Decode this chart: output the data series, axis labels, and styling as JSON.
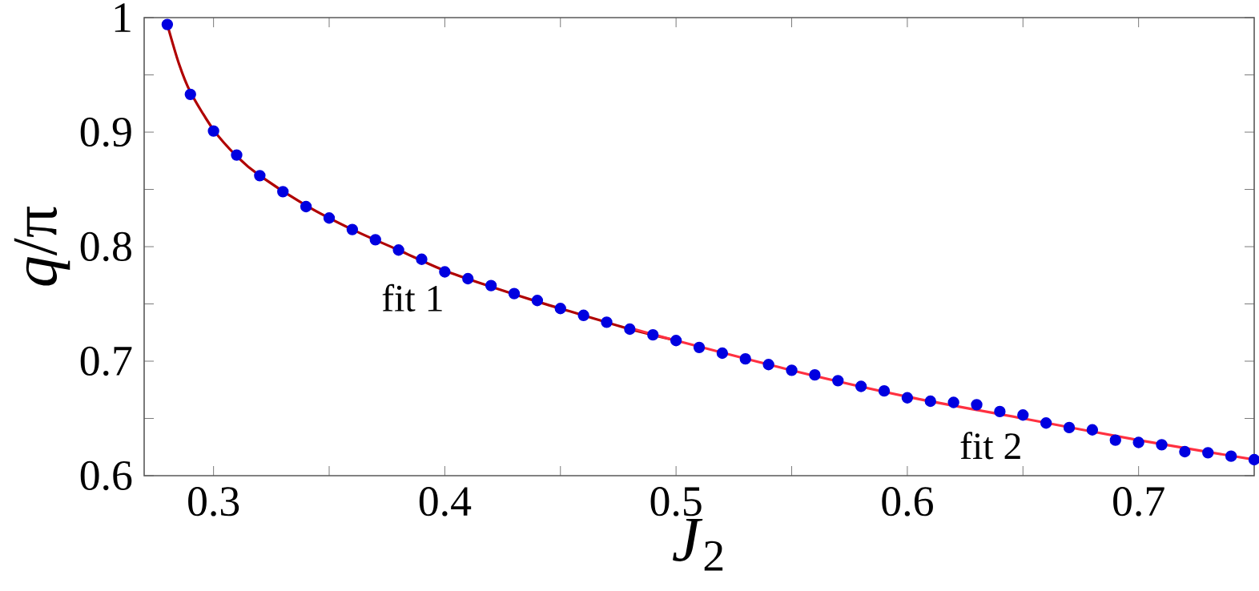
{
  "chart_data": {
    "type": "scatter",
    "xlabel": "*J*$_{2}$",
    "ylabel": "*q*/π",
    "xlim": [
      0.27,
      0.75
    ],
    "ylim": [
      0.6,
      1
    ],
    "xticks": [
      0.3,
      {
        "value": 0.35,
        "label": null
      },
      0.4,
      {
        "value": 0.45,
        "label": null
      },
      0.5,
      {
        "value": 0.55,
        "label": null
      },
      0.6,
      {
        "value": 0.65,
        "label": null
      },
      0.7
    ],
    "yticks": [
      0.6,
      {
        "value": 0.65,
        "label": null
      },
      0.7,
      {
        "value": 0.75,
        "label": null
      },
      0.8,
      {
        "value": 0.85,
        "label": null
      },
      0.9,
      {
        "value": 0.95,
        "label": null
      },
      1
    ],
    "grid": false,
    "annotations": [
      "fit 1",
      "fit 2"
    ],
    "series": [
      {
        "type": "line",
        "color": "#b00000",
        "line_style": "solid",
        "x": [
          0.28,
          0.285,
          0.29,
          0.3,
          0.31,
          0.32,
          0.34,
          0.36,
          0.38,
          0.4,
          0.42,
          0.44,
          0.46,
          0.48,
          0.5
        ],
        "values": [
          0.994,
          0.96,
          0.935,
          0.902,
          0.879,
          0.862,
          0.836,
          0.815,
          0.797,
          0.779,
          0.765,
          0.752,
          0.74,
          0.728,
          0.718
        ]
      },
      {
        "type": "line",
        "color": "#ff3040",
        "line_style": "solid",
        "x": [
          0.48,
          0.5,
          0.55,
          0.6,
          0.65,
          0.7,
          0.75
        ],
        "values": [
          0.729,
          0.718,
          0.692,
          0.669,
          0.65,
          0.631,
          0.614
        ]
      },
      {
        "color": "#0000e0",
        "x": [
          0.28,
          0.29,
          0.3,
          0.31,
          0.32,
          0.33,
          0.34,
          0.35,
          0.36,
          0.37,
          0.38,
          0.39,
          0.4,
          0.41,
          0.42,
          0.43,
          0.44,
          0.45,
          0.46,
          0.47,
          0.48,
          0.49,
          0.5,
          0.51,
          0.52,
          0.53,
          0.54,
          0.55,
          0.56,
          0.57,
          0.58,
          0.59,
          0.6,
          0.61,
          0.62,
          0.63,
          0.64,
          0.65,
          0.66,
          0.67,
          0.68,
          0.69,
          0.7,
          0.71,
          0.72,
          0.73,
          0.74,
          0.75
        ],
        "values": [
          0.994,
          0.933,
          0.901,
          0.88,
          0.862,
          0.848,
          0.835,
          0.825,
          0.815,
          0.806,
          0.797,
          0.789,
          0.778,
          0.772,
          0.766,
          0.759,
          0.753,
          0.746,
          0.74,
          0.734,
          0.728,
          0.723,
          0.718,
          0.712,
          0.707,
          0.702,
          0.697,
          0.692,
          0.688,
          0.683,
          0.678,
          0.674,
          0.668,
          0.665,
          0.664,
          0.662,
          0.656,
          0.653,
          0.646,
          0.642,
          0.64,
          0.631,
          0.629,
          0.627,
          0.621,
          0.62,
          0.617,
          0.614
        ]
      }
    ]
  }
}
